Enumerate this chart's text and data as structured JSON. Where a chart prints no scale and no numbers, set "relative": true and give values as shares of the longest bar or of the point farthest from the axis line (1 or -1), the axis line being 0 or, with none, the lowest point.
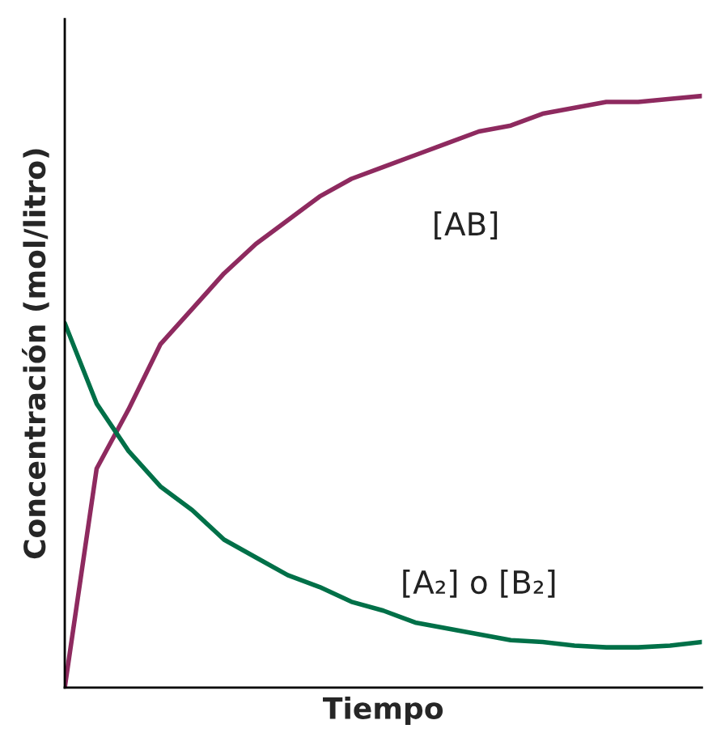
{
  "chart_data": {
    "type": "line",
    "relative": true,
    "xlabel": "Tiempo",
    "ylabel": "Concentración (mol/litro)",
    "tick_labels": false,
    "line_style": "solid",
    "categories": [
      null,
      null,
      null,
      null,
      null,
      null,
      null,
      null,
      null,
      null,
      null,
      null,
      null,
      null,
      null,
      null,
      null,
      null,
      null,
      null,
      null
    ],
    "series": [
      {
        "name": "[AB]",
        "color": "#8e2a5f",
        "values": [
          0,
          0.37,
          0.47,
          0.58,
          0.64,
          0.7,
          0.75,
          0.79,
          0.83,
          0.86,
          0.88,
          0.9,
          0.92,
          0.94,
          0.95,
          0.97,
          0.98,
          0.99,
          0.99,
          0.995,
          1.0
        ]
      },
      {
        "name": "[A₂] o [B₂]",
        "color": "#007048",
        "values": [
          0.616,
          0.48,
          0.4,
          0.34,
          0.3,
          0.25,
          0.22,
          0.19,
          0.17,
          0.145,
          0.13,
          0.11,
          0.1,
          0.09,
          0.08,
          0.077,
          0.071,
          0.068,
          0.068,
          0.071,
          0.077
        ]
      }
    ]
  }
}
